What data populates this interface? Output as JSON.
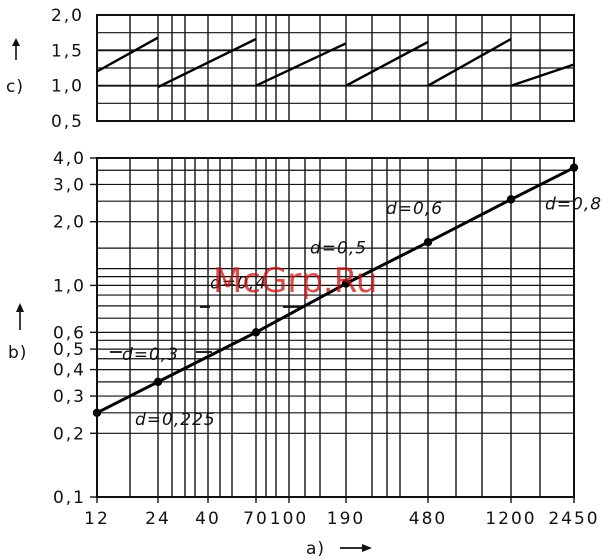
{
  "watermark": "McGrp.Ru",
  "chart_data": [
    {
      "id": "c",
      "type": "line",
      "panel_label": "c)",
      "y_scale": "linear",
      "ylim": [
        0.5,
        2.0
      ],
      "yticks": [
        0.5,
        1.0,
        1.5,
        2.0
      ],
      "ytick_labels": [
        "0,5",
        "1,0",
        "1,5",
        "2,0"
      ],
      "grid": true,
      "segments": [
        {
          "x": [
            12,
            24
          ],
          "y": [
            1.2,
            1.68
          ]
        },
        {
          "x": [
            24,
            70
          ],
          "y": [
            0.98,
            1.66
          ]
        },
        {
          "x": [
            70,
            190
          ],
          "y": [
            1.0,
            1.6
          ]
        },
        {
          "x": [
            190,
            480
          ],
          "y": [
            1.0,
            1.62
          ]
        },
        {
          "x": [
            480,
            1200
          ],
          "y": [
            1.0,
            1.66
          ]
        },
        {
          "x": [
            1200,
            2450
          ],
          "y": [
            1.0,
            1.3
          ]
        }
      ]
    },
    {
      "id": "b",
      "type": "line",
      "panel_label": "b)",
      "x_label": "a)",
      "x_scale": "log",
      "y_scale": "log",
      "xlim": [
        12,
        2450
      ],
      "ylim": [
        0.1,
        4.0
      ],
      "xticks": [
        12,
        24,
        40,
        70,
        100,
        190,
        480,
        1200,
        2450
      ],
      "xtick_labels": [
        "12",
        "24",
        "40",
        "70",
        "100",
        "190",
        "480",
        "1200",
        "2450"
      ],
      "yticks": [
        0.1,
        0.2,
        0.3,
        0.4,
        0.5,
        0.6,
        1.0,
        2.0,
        3.0,
        4.0
      ],
      "ytick_labels": [
        "0,1",
        "0,2",
        "0,3",
        "0,4",
        "0,5",
        "0,6",
        "1,0",
        "2,0",
        "3,0",
        "4,0"
      ],
      "grid": true,
      "series": [
        {
          "x": [
            12,
            24,
            70,
            190,
            480,
            1200,
            2450
          ],
          "y": [
            0.25,
            0.35,
            0.6,
            1.02,
            1.6,
            2.55,
            3.6
          ]
        }
      ],
      "annotations": [
        {
          "text": "d=0,225",
          "x": 12,
          "y": 0.25
        },
        {
          "text": "d=0,3",
          "x": 24,
          "y": 0.35
        },
        {
          "text": "d=0,4",
          "x": 70,
          "y": 0.6
        },
        {
          "text": "d=0,5",
          "x": 190,
          "y": 1.02
        },
        {
          "text": "d=0,6",
          "x": 480,
          "y": 1.6
        },
        {
          "text": "d=0,8",
          "x": 1200,
          "y": 2.55
        }
      ]
    }
  ]
}
